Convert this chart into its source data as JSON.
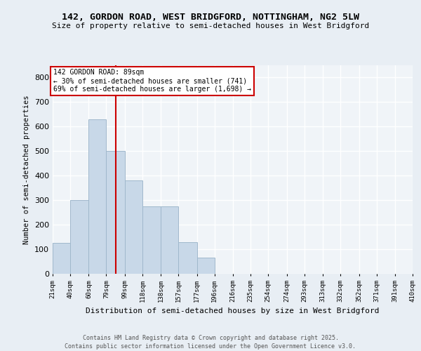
{
  "title1": "142, GORDON ROAD, WEST BRIDGFORD, NOTTINGHAM, NG2 5LW",
  "title2": "Size of property relative to semi-detached houses in West Bridgford",
  "xlabel": "Distribution of semi-detached houses by size in West Bridgford",
  "ylabel": "Number of semi-detached properties",
  "bin_labels": [
    "21sqm",
    "40sqm",
    "60sqm",
    "79sqm",
    "99sqm",
    "118sqm",
    "138sqm",
    "157sqm",
    "177sqm",
    "196sqm",
    "216sqm",
    "235sqm",
    "254sqm",
    "274sqm",
    "293sqm",
    "313sqm",
    "332sqm",
    "352sqm",
    "371sqm",
    "391sqm",
    "410sqm"
  ],
  "bar_values": [
    125,
    300,
    630,
    500,
    380,
    275,
    275,
    130,
    65,
    0,
    0,
    0,
    0,
    0,
    0,
    0,
    0,
    0,
    0,
    0
  ],
  "bin_edges_sqm": [
    21,
    40,
    60,
    79,
    99,
    118,
    138,
    157,
    177,
    196,
    216,
    235,
    254,
    274,
    293,
    313,
    332,
    352,
    371,
    391,
    410
  ],
  "property_size_sqm": 89,
  "bar_color": "#c8d8e8",
  "bar_edge_color": "#a0b8cc",
  "vline_color": "#cc0000",
  "annotation_text": "142 GORDON ROAD: 89sqm\n← 30% of semi-detached houses are smaller (741)\n69% of semi-detached houses are larger (1,698) →",
  "annotation_box_color": "#ffffff",
  "annotation_box_edge": "#cc0000",
  "bg_color": "#e8eef4",
  "plot_bg_color": "#f0f4f8",
  "grid_color": "#ffffff",
  "ylim": [
    0,
    850
  ],
  "yticks": [
    0,
    100,
    200,
    300,
    400,
    500,
    600,
    700,
    800
  ],
  "footer1": "Contains HM Land Registry data © Crown copyright and database right 2025.",
  "footer2": "Contains public sector information licensed under the Open Government Licence v3.0."
}
